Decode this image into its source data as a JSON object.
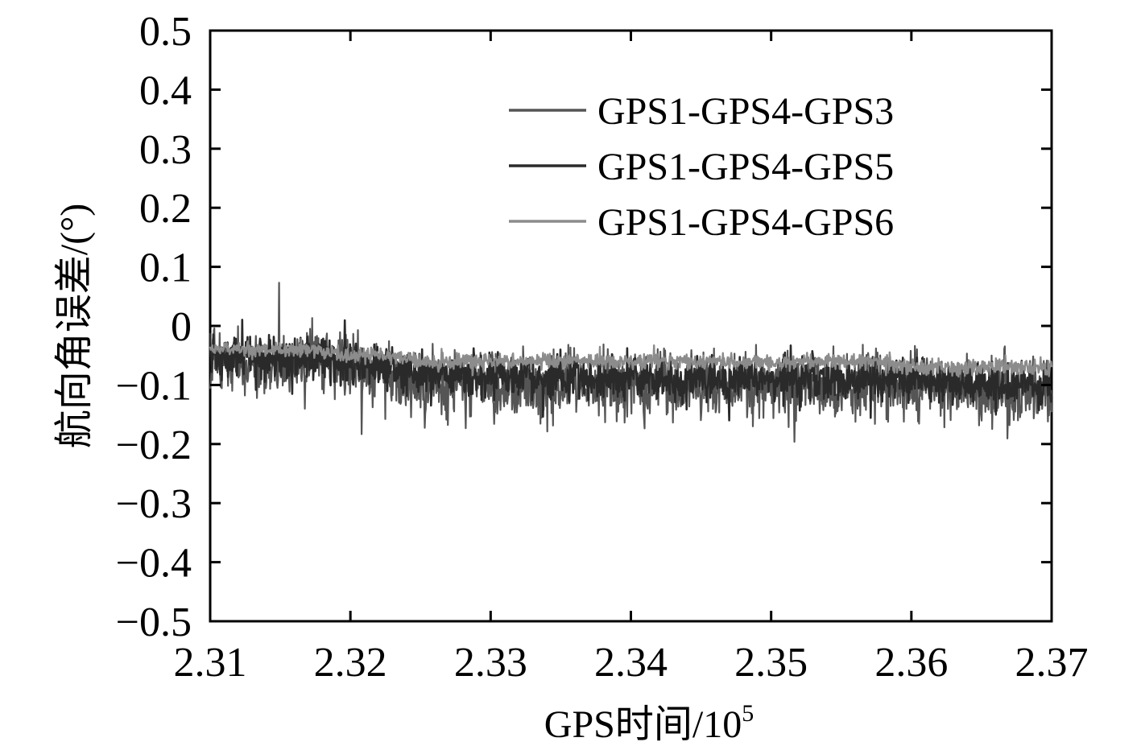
{
  "chart_data": {
    "type": "line",
    "title": "",
    "xlabel": "GPS时间/10",
    "xlabel_superscript": "5",
    "ylabel": "航向角误差/(°)",
    "xlim": [
      2.31,
      2.37
    ],
    "ylim": [
      -0.5,
      0.5
    ],
    "x_ticks": [
      2.31,
      2.32,
      2.33,
      2.34,
      2.35,
      2.36,
      2.37
    ],
    "y_ticks": [
      0.5,
      0.4,
      0.3,
      0.2,
      0.1,
      0,
      -0.1,
      -0.2,
      -0.3,
      -0.4,
      -0.5
    ],
    "x_tick_labels": [
      "2.31",
      "2.32",
      "2.33",
      "2.34",
      "2.35",
      "2.36",
      "2.37"
    ],
    "y_tick_labels": [
      "0.5",
      "0.4",
      "0.3",
      "0.2",
      "0.1",
      "0",
      "−0.1",
      "−0.2",
      "−0.3",
      "−0.4",
      "−0.5"
    ],
    "grid": false,
    "legend_position": "top-right",
    "x": [
      2.31,
      2.3125,
      2.315,
      2.3175,
      2.32,
      2.3225,
      2.325,
      2.3275,
      2.33,
      2.3325,
      2.335,
      2.3375,
      2.34,
      2.3425,
      2.345,
      2.3475,
      2.35,
      2.3525,
      2.355,
      2.3575,
      2.36,
      2.3625,
      2.365,
      2.3675,
      2.37
    ],
    "series": [
      {
        "name": "GPS1-GPS4-GPS3",
        "color": "#555555",
        "values": [
          -0.06,
          -0.06,
          -0.07,
          -0.06,
          -0.07,
          -0.08,
          -0.1,
          -0.1,
          -0.1,
          -0.1,
          -0.1,
          -0.1,
          -0.1,
          -0.1,
          -0.1,
          -0.1,
          -0.1,
          -0.1,
          -0.1,
          -0.1,
          -0.1,
          -0.11,
          -0.11,
          -0.11,
          -0.11
        ],
        "noise_amplitude": 0.055
      },
      {
        "name": "GPS1-GPS4-GPS5",
        "color": "#2a2a2a",
        "values": [
          -0.05,
          -0.05,
          -0.05,
          -0.05,
          -0.06,
          -0.07,
          -0.08,
          -0.08,
          -0.09,
          -0.09,
          -0.09,
          -0.09,
          -0.09,
          -0.09,
          -0.09,
          -0.09,
          -0.09,
          -0.09,
          -0.09,
          -0.09,
          -0.09,
          -0.09,
          -0.1,
          -0.1,
          -0.1
        ],
        "noise_amplitude": 0.035
      },
      {
        "name": "GPS1-GPS4-GPS6",
        "color": "#8c8c8c",
        "values": [
          -0.04,
          -0.04,
          -0.04,
          -0.04,
          -0.05,
          -0.05,
          -0.06,
          -0.06,
          -0.06,
          -0.06,
          -0.06,
          -0.06,
          -0.06,
          -0.06,
          -0.06,
          -0.06,
          -0.06,
          -0.06,
          -0.06,
          -0.06,
          -0.07,
          -0.07,
          -0.07,
          -0.07,
          -0.07
        ],
        "noise_amplitude": 0.012
      }
    ]
  }
}
